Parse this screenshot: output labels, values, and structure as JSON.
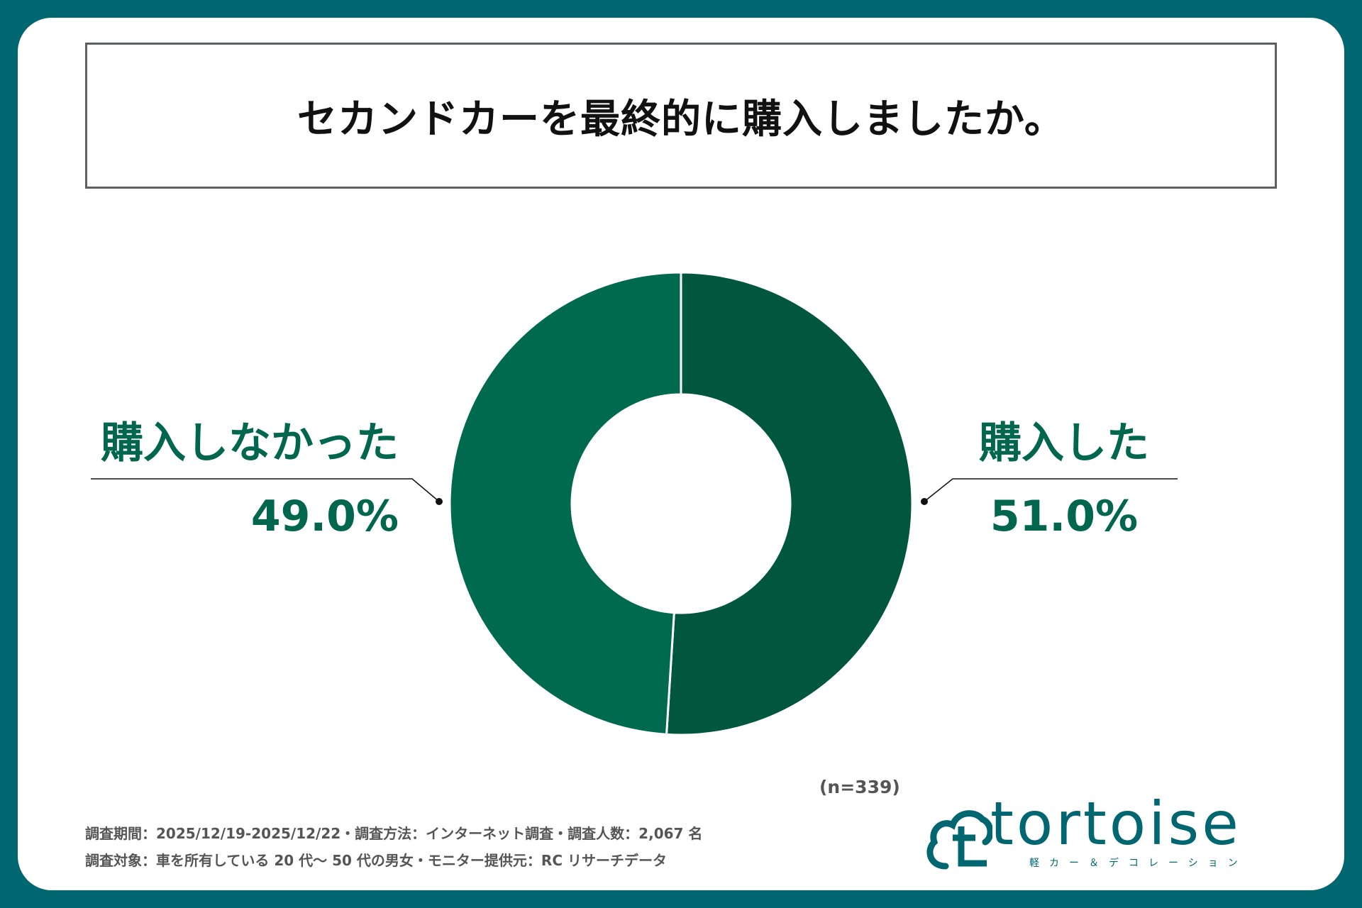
{
  "title": "セカンドカーを最終的に購入しましたか。",
  "chart_data": {
    "type": "pie",
    "categories": [
      "購入した",
      "購入しなかった"
    ],
    "values": [
      51.0,
      49.0
    ],
    "value_labels": [
      "51.0%",
      "49.0%"
    ],
    "colors": [
      "#00573e",
      "#006a4f"
    ],
    "label_color": "#00664d",
    "sample_note": "(n=339)"
  },
  "footnotes": [
    "調査期間：2025/12/19-2025/12/22・調査方法：インターネット調査・調査人数：2,067 名",
    "調査対象：車を所有している 20 代～ 50 代の男女・モニター提供元：RC リサーチデータ"
  ],
  "logo": {
    "name": "tortoise",
    "icon": "cloud-t-logo-icon",
    "subtitle": "軽カー＆デコレーション"
  },
  "colors": {
    "frame": "#006670",
    "card": "#ffffff"
  }
}
